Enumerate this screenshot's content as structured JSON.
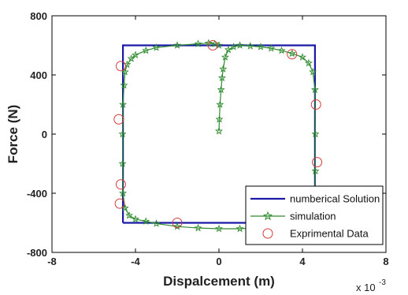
{
  "chart_data": {
    "type": "line",
    "title": "",
    "xlabel": "Dispalcement (m)",
    "ylabel": "Force (N)",
    "x_multiplier_label": "x 10",
    "x_multiplier_exponent": "-3",
    "xlim": [
      -8,
      8
    ],
    "ylim": [
      -800,
      800
    ],
    "x_ticks": [
      "-8",
      "-4",
      "0",
      "4",
      "8"
    ],
    "y_ticks": [
      "800",
      "400",
      "0",
      "-400",
      "-800"
    ],
    "x_tick_values": [
      -8,
      -4,
      0,
      4,
      8
    ],
    "y_tick_values": [
      800,
      400,
      0,
      -400,
      -800
    ],
    "grid": false,
    "legend_position": "bottom-right",
    "colors": {
      "numerical": "#1a1aa6",
      "simulation": "#2e8b2e",
      "experimental": "#d23c3c"
    },
    "series": [
      {
        "name": "numberical Solution",
        "style": "line",
        "x": [
          -4.6,
          -4.6,
          4.6,
          4.6,
          -4.6
        ],
        "y": [
          -600,
          600,
          600,
          -600,
          -600
        ]
      },
      {
        "name": "simulation",
        "style": "line-star",
        "x": [
          0,
          0.02,
          0.05,
          0.1,
          0.15,
          0.2,
          0.3,
          0.45,
          0.7,
          1.0,
          1.5,
          2.0,
          2.5,
          3.0,
          3.5,
          4.0,
          4.3,
          4.5,
          4.6,
          4.62,
          4.62,
          4.6,
          4.58,
          4.5,
          4.3,
          4.0,
          3.5,
          3.0,
          2.0,
          1.0,
          0,
          -1.0,
          -2.0,
          -3.0,
          -3.5,
          -4.0,
          -4.3,
          -4.5,
          -4.6,
          -4.62,
          -4.62,
          -4.6,
          -4.55,
          -4.5,
          -4.4,
          -4.2,
          -4.0,
          -3.5,
          -3.0,
          -2.0,
          -1.0,
          -0.5,
          -0.2,
          0
        ],
        "y": [
          20,
          100,
          200,
          300,
          380,
          440,
          520,
          570,
          590,
          600,
          595,
          590,
          580,
          565,
          545,
          520,
          480,
          420,
          300,
          0,
          -250,
          -400,
          -480,
          -540,
          -570,
          -590,
          -605,
          -615,
          -630,
          -640,
          -640,
          -635,
          -625,
          -605,
          -590,
          -575,
          -550,
          -500,
          -400,
          -200,
          0,
          200,
          330,
          420,
          470,
          510,
          535,
          565,
          585,
          600,
          610,
          615,
          610,
          600
        ]
      },
      {
        "name": "Exprimental Data",
        "style": "marker-circle",
        "x": [
          -4.7,
          -4.8,
          -4.7,
          -4.75,
          -2.0,
          -0.3,
          3.5,
          4.65,
          4.7
        ],
        "y": [
          460,
          100,
          -340,
          -470,
          -600,
          600,
          540,
          200,
          -190
        ]
      }
    ],
    "legend": [
      {
        "label": "numberical Solution",
        "series": 0
      },
      {
        "label": "simulation",
        "series": 1
      },
      {
        "label": "Exprimental Data",
        "series": 2
      }
    ]
  }
}
